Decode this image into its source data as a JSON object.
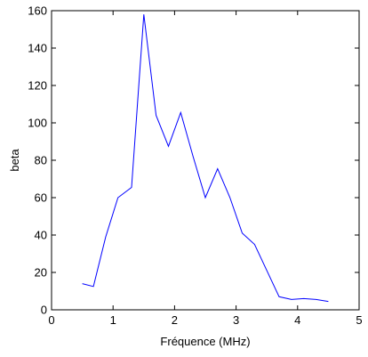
{
  "chart_data": {
    "type": "line",
    "title": "",
    "xlabel": "Fréquence (MHz)",
    "ylabel": "beta",
    "xlim": [
      0,
      5
    ],
    "ylim": [
      0,
      160
    ],
    "xticks": [
      0,
      1,
      2,
      3,
      4,
      5
    ],
    "yticks": [
      0,
      20,
      40,
      60,
      80,
      100,
      120,
      140,
      160
    ],
    "grid": false,
    "series": [
      {
        "color": "#0000ff",
        "x": [
          0.5,
          0.68,
          0.88,
          1.08,
          1.3,
          1.5,
          1.7,
          1.9,
          2.1,
          2.3,
          2.5,
          2.7,
          2.9,
          3.1,
          3.3,
          3.5,
          3.7,
          3.9,
          4.1,
          4.3,
          4.5
        ],
        "y": [
          14,
          12.5,
          39,
          60,
          65.5,
          158,
          104,
          87.5,
          105.5,
          82,
          60,
          75.5,
          60,
          41,
          35,
          21,
          7,
          5.5,
          6,
          5.5,
          4.5
        ]
      }
    ]
  }
}
